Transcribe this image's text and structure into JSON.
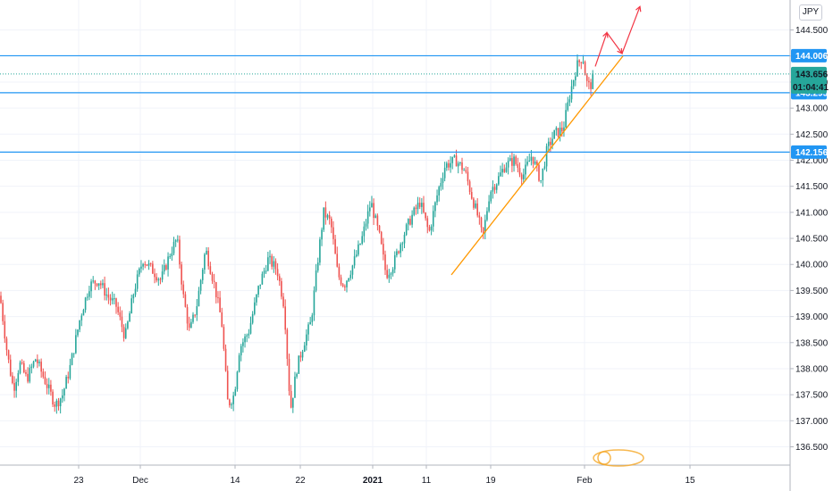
{
  "currency_button": "JPY",
  "chart_data": {
    "type": "candlestick",
    "instrument_currency": "JPY",
    "y_range": [
      136.2,
      144.9
    ],
    "y_ticks": [
      "136.500",
      "137.000",
      "137.500",
      "138.000",
      "138.500",
      "139.000",
      "139.500",
      "140.000",
      "140.500",
      "141.000",
      "141.500",
      "142.000",
      "142.500",
      "143.000",
      "143.500",
      "144.000",
      "144.500"
    ],
    "x_ticks": [
      "23",
      "Dec",
      "14",
      "22",
      "2021",
      "11",
      "19",
      "Feb",
      "15"
    ],
    "x_tick_bold": [
      "2021"
    ],
    "horizontal_levels": [
      {
        "value": 144.006,
        "label": "144.006",
        "color": "#2196f3"
      },
      {
        "value": 143.295,
        "label": "143.295",
        "color": "#2196f3"
      },
      {
        "value": 142.156,
        "label": "142.156",
        "color": "#2196f3"
      }
    ],
    "current_price": {
      "value": 143.656,
      "label": "143.656",
      "color": "#26a69a"
    },
    "countdown": "01:04:41",
    "trendline": {
      "color": "#ff9800",
      "from": {
        "x": "Jan 12",
        "y": 139.8
      },
      "to": {
        "x": "Feb 3",
        "y": 144.0
      }
    },
    "projection_path": {
      "color": "#f23645",
      "points": [
        143.8,
        144.45,
        144.05,
        144.95
      ]
    },
    "bull_color": "#26a69a",
    "bear_color": "#ef5350",
    "key_path": [
      [
        0,
        139.4
      ],
      [
        8,
        138.3
      ],
      [
        15,
        137.6
      ],
      [
        22,
        138.1
      ],
      [
        30,
        137.8
      ],
      [
        40,
        138.2
      ],
      [
        52,
        137.7
      ],
      [
        62,
        137.3
      ],
      [
        70,
        137.5
      ],
      [
        78,
        138.0
      ],
      [
        90,
        139.0
      ],
      [
        100,
        139.6
      ],
      [
        110,
        139.7
      ],
      [
        120,
        139.4
      ],
      [
        130,
        139.2
      ],
      [
        140,
        138.6
      ],
      [
        150,
        139.5
      ],
      [
        160,
        140.1
      ],
      [
        170,
        139.9
      ],
      [
        180,
        139.7
      ],
      [
        190,
        140.2
      ],
      [
        198,
        140.5
      ],
      [
        205,
        139.4
      ],
      [
        212,
        138.7
      ],
      [
        220,
        139.2
      ],
      [
        230,
        140.3
      ],
      [
        240,
        139.6
      ],
      [
        248,
        138.9
      ],
      [
        255,
        137.3
      ],
      [
        262,
        137.5
      ],
      [
        268,
        138.4
      ],
      [
        278,
        138.7
      ],
      [
        290,
        139.6
      ],
      [
        300,
        140.1
      ],
      [
        310,
        139.9
      ],
      [
        318,
        139.2
      ],
      [
        325,
        137.2
      ],
      [
        332,
        138.0
      ],
      [
        340,
        138.5
      ],
      [
        348,
        138.9
      ],
      [
        355,
        140.0
      ],
      [
        362,
        141.0
      ],
      [
        370,
        140.8
      ],
      [
        378,
        139.8
      ],
      [
        385,
        139.6
      ],
      [
        395,
        140.0
      ],
      [
        405,
        140.5
      ],
      [
        415,
        141.2
      ],
      [
        425,
        140.5
      ],
      [
        432,
        139.8
      ],
      [
        440,
        140.0
      ],
      [
        450,
        140.5
      ],
      [
        460,
        140.9
      ],
      [
        470,
        141.2
      ],
      [
        480,
        140.6
      ],
      [
        490,
        141.4
      ],
      [
        498,
        141.9
      ],
      [
        510,
        142.0
      ],
      [
        520,
        141.8
      ],
      [
        528,
        141.3
      ],
      [
        535,
        140.9
      ],
      [
        540,
        140.5
      ],
      [
        548,
        141.4
      ],
      [
        556,
        141.6
      ],
      [
        565,
        141.9
      ],
      [
        575,
        142.0
      ],
      [
        585,
        141.7
      ],
      [
        595,
        142.1
      ],
      [
        605,
        141.6
      ],
      [
        612,
        142.2
      ],
      [
        620,
        142.5
      ],
      [
        630,
        142.6
      ],
      [
        638,
        143.3
      ],
      [
        645,
        143.8
      ],
      [
        652,
        144.0
      ],
      [
        656,
        143.5
      ],
      [
        660,
        143.4
      ],
      [
        665,
        143.65
      ]
    ]
  }
}
